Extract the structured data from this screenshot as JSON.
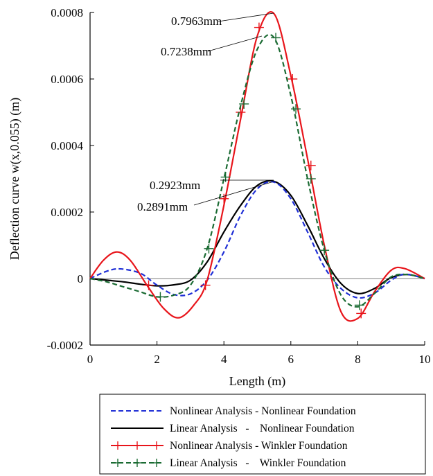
{
  "chart_data": {
    "type": "line",
    "title": "",
    "xlabel": "Length (m)",
    "ylabel": "Deflection curve w(x,0.055) (m)",
    "xlim": [
      0,
      10
    ],
    "ylim": [
      -0.0002,
      0.0008
    ],
    "xticks": [
      0,
      2,
      4,
      6,
      8,
      10
    ],
    "xtick_labels": [
      "0",
      "2",
      "4",
      "6",
      "8",
      "10"
    ],
    "yticks": [
      -0.0002,
      0,
      0.0002,
      0.0004,
      0.0006,
      0.0008
    ],
    "ytick_labels": [
      "-0.0002",
      "0",
      "0.0002",
      "0.0004",
      "0.0006",
      "0.0008"
    ],
    "grid": false,
    "legend_position": "bottom",
    "series": [
      {
        "name": "Nonlinear Analysis - Nonlinear Foundation",
        "color": "#1f2fd6",
        "style": "dashed",
        "marker": "none",
        "x": [
          0,
          0.5,
          0.9,
          1.5,
          2.0,
          2.5,
          3.0,
          3.5,
          4.0,
          4.5,
          5.0,
          5.5,
          6.0,
          6.5,
          7.0,
          7.5,
          8.0,
          8.5,
          9.0,
          9.4,
          10.0
        ],
        "y": [
          0,
          2.2e-05,
          2.9e-05,
          1.6e-05,
          -2e-05,
          -4.8e-05,
          -4.6e-05,
          -5e-06,
          8e-05,
          0.00019,
          0.00027,
          0.00029,
          0.00024,
          0.00014,
          3.5e-05,
          -3e-05,
          -5.8e-05,
          -4.4e-05,
          -5e-06,
          1.3e-05,
          0
        ]
      },
      {
        "name": "Linear Analysis   -    Nonlinear Foundation",
        "color": "#000000",
        "style": "solid",
        "marker": "none",
        "x": [
          0,
          0.5,
          1.0,
          1.5,
          2.0,
          2.5,
          3.0,
          3.5,
          4.0,
          4.5,
          5.0,
          5.5,
          6.0,
          6.5,
          7.0,
          7.5,
          8.0,
          8.5,
          9.0,
          9.5,
          10.0
        ],
        "y": [
          0,
          -5e-06,
          -1e-05,
          -1.7e-05,
          -2.2e-05,
          -1.9e-05,
          -5e-06,
          5e-05,
          0.00014,
          0.00022,
          0.00028,
          0.000292,
          0.00025,
          0.00016,
          6e-05,
          -1.5e-05,
          -4.5e-05,
          -3e-05,
          3e-06,
          1.2e-05,
          0
        ]
      },
      {
        "name": "Nonlinear Analysis - Winkler Foundation",
        "color": "#e8151b",
        "style": "solid",
        "marker": "plus",
        "x": [
          0,
          0.4,
          0.8,
          1.2,
          1.7,
          2.2,
          2.65,
          3.1,
          3.5,
          4.0,
          4.5,
          5.0,
          5.5,
          6.0,
          6.5,
          7.0,
          7.5,
          8.0,
          8.5,
          9.0,
          9.4,
          10.0
        ],
        "y": [
          0,
          5.5e-05,
          8e-05,
          5.5e-05,
          -2e-05,
          -9e-05,
          -0.000118,
          -8e-05,
          -5e-06,
          0.00022,
          0.00048,
          0.00073,
          0.000796,
          0.00061,
          0.00036,
          0.0001,
          -0.0001,
          -0.00012,
          -4e-05,
          2.5e-05,
          3e-05,
          0
        ],
        "marker_x": [
          1.75,
          3.45,
          4.0,
          4.5,
          5.05,
          6.05,
          6.6,
          8.1
        ],
        "marker_y": [
          -2e-05,
          -2e-05,
          0.00024,
          0.0005,
          0.000755,
          0.0006,
          0.00034,
          -0.000105
        ]
      },
      {
        "name": "Linear Analysis   -    Winkler Foundation",
        "color": "#1b6b33",
        "style": "dashed",
        "marker": "plus",
        "x": [
          0,
          0.5,
          1.0,
          1.5,
          2.0,
          2.5,
          3.0,
          3.5,
          4.0,
          4.5,
          5.0,
          5.5,
          6.0,
          6.5,
          7.0,
          7.5,
          8.0,
          8.5,
          9.0,
          9.5,
          10.0
        ],
        "y": [
          0,
          -1e-05,
          -2.5e-05,
          -4e-05,
          -5.5e-05,
          -5e-05,
          -2e-05,
          9e-05,
          0.0003,
          0.00052,
          0.00069,
          0.000724,
          0.00055,
          0.0003,
          8.5e-05,
          -5e-05,
          -8.5e-05,
          -4.5e-05,
          5e-06,
          1.2e-05,
          0
        ],
        "marker_x": [
          2.1,
          3.55,
          4.05,
          4.6,
          5.55,
          6.15,
          6.6,
          7.0,
          8.05
        ],
        "marker_y": [
          -5.5e-05,
          9e-05,
          0.000305,
          0.000525,
          0.000724,
          0.00051,
          0.0003,
          8.5e-05,
          -8e-05
        ]
      }
    ],
    "annotations": [
      {
        "text": "0.7963mm",
        "point": [
          5.5,
          0.000796
        ],
        "label_at": [
          0.000783
        ]
      },
      {
        "text": "0.7238mm",
        "point": [
          5.5,
          0.000724
        ],
        "label_at": [
          0.000697
        ]
      },
      {
        "text": "0.2923mm",
        "point": [
          5.5,
          0.000292
        ],
        "label_at": [
          0.000278
        ]
      },
      {
        "text": "0.2891mm",
        "point": [
          5.5,
          0.000289
        ],
        "label_at": [
          0.000218
        ]
      }
    ]
  }
}
